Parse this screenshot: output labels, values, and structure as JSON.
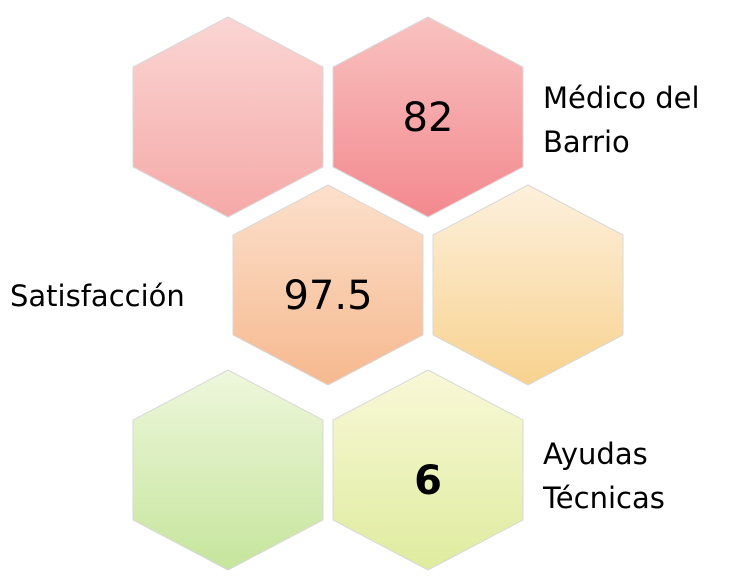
{
  "items": [
    {
      "value": 82,
      "label": [
        "Médico del",
        "Barrio"
      ]
    },
    {
      "value": 97.5,
      "label": [
        "Satisfacción"
      ]
    },
    {
      "value": 6,
      "label": [
        "Ayudas",
        "Técnicas"
      ]
    }
  ]
}
